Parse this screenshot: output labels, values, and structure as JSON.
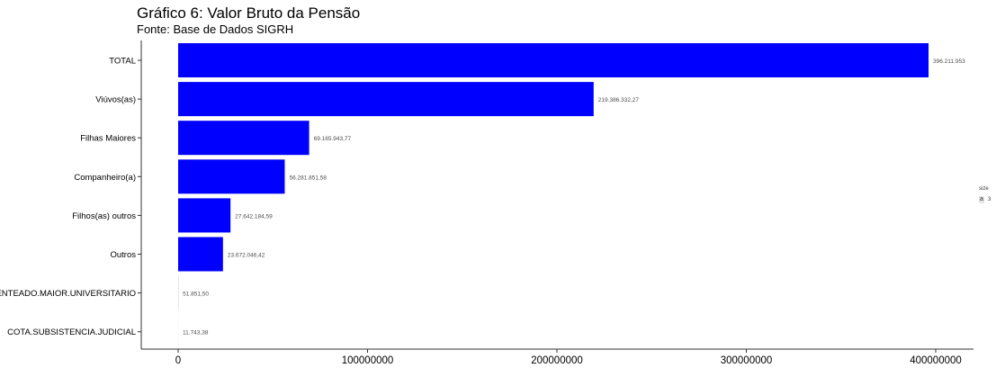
{
  "colors": {
    "bar": "#0000ff",
    "axis": "#333333",
    "text": "#000000"
  },
  "chart_data": {
    "type": "bar",
    "orientation": "horizontal",
    "title": "Gráfico 6: Valor Bruto da Pensão",
    "subtitle": "Fonte: Base de Dados SIGRH",
    "xlabel": "",
    "ylabel": "",
    "xlim": [
      0,
      400000000
    ],
    "xticks": [
      0,
      100000000,
      200000000,
      300000000,
      400000000
    ],
    "xtick_labels": [
      "0",
      "100000000",
      "200000000",
      "300000000",
      "400000000"
    ],
    "categories": [
      "TOTAL",
      "Viúvos(as)",
      "Filhas Maiores",
      "Companheiro(a)",
      "Filhos(as) outros",
      "Outros",
      "ENTEADO.MAIOR.UNIVERSITARIO",
      "COTA.SUBSISTENCIA.JUDICIAL"
    ],
    "values": [
      396211953,
      219386332.27,
      69165943.77,
      56281851.58,
      27642184.59,
      23672046.42,
      51851.5,
      11743.38
    ],
    "data_labels": [
      "396.211.953",
      "219.386.332,27",
      "69.165.943,77",
      "56.281.851,58",
      "27.642.184,59",
      "23.672.046,42",
      "51.851,50",
      "11.743,38"
    ],
    "grid": false,
    "legend": {
      "title": "size",
      "key": "a",
      "label": "3",
      "position": "right"
    }
  }
}
